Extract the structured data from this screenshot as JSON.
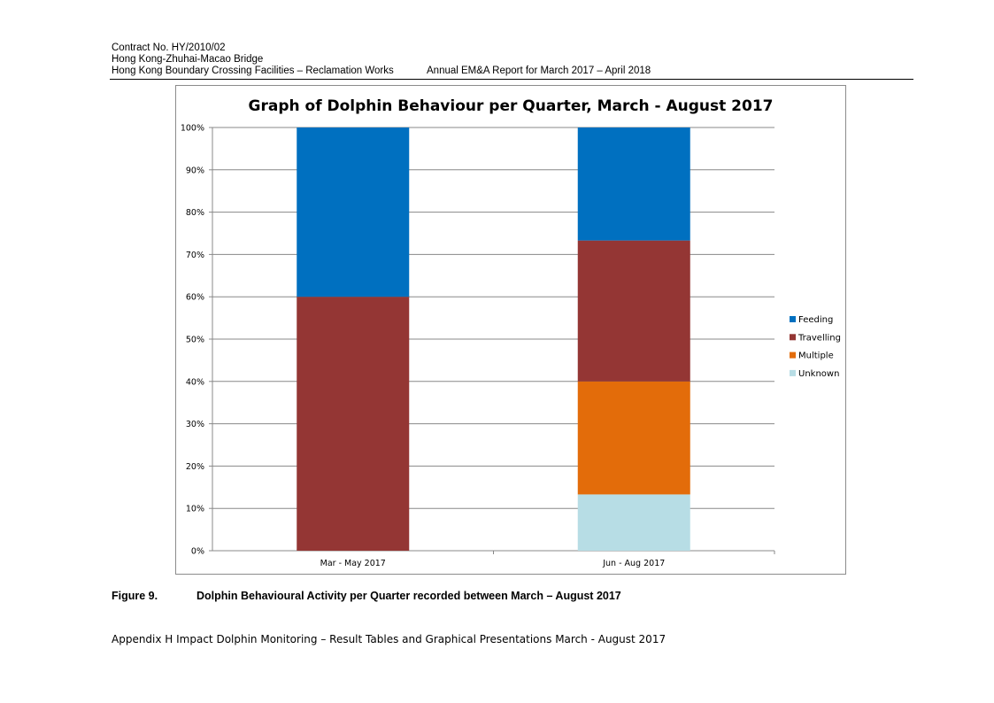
{
  "header": {
    "line1": "Contract No. HY/2010/02",
    "line2": "Hong Kong-Zhuhai-Macao Bridge",
    "line3_left": "Hong Kong Boundary Crossing Facilities – Reclamation Works",
    "line3_right": "Annual EM&A Report for March 2017 – April 2018"
  },
  "caption": {
    "number": "Figure 9.",
    "title": "Dolphin Behavioural Activity per Quarter recorded between March – August 2017"
  },
  "footer": "Appendix H Impact Dolphin Monitoring – Result Tables and Graphical Presentations  March - August 2017",
  "chart_data": {
    "type": "bar",
    "stacked": true,
    "title": "Graph of Dolphin Behaviour per Quarter, March - August 2017",
    "categories": [
      "Mar - May 2017",
      "Jun - Aug 2017"
    ],
    "series": [
      {
        "name": "Unknown",
        "color": "#b7dde5",
        "values": [
          0,
          13.3
        ]
      },
      {
        "name": "Multiple",
        "color": "#e36c0a",
        "values": [
          0,
          26.7
        ]
      },
      {
        "name": "Travelling",
        "color": "#943634",
        "values": [
          60,
          33.3
        ]
      },
      {
        "name": "Feeding",
        "color": "#0070c0",
        "values": [
          40,
          26.7
        ]
      }
    ],
    "legend_order": [
      "Feeding",
      "Travelling",
      "Multiple",
      "Unknown"
    ],
    "ylim": [
      0,
      100
    ],
    "yticks": [
      "0%",
      "10%",
      "20%",
      "30%",
      "40%",
      "50%",
      "60%",
      "70%",
      "80%",
      "90%",
      "100%"
    ],
    "grid": true,
    "legend_position": "right"
  }
}
